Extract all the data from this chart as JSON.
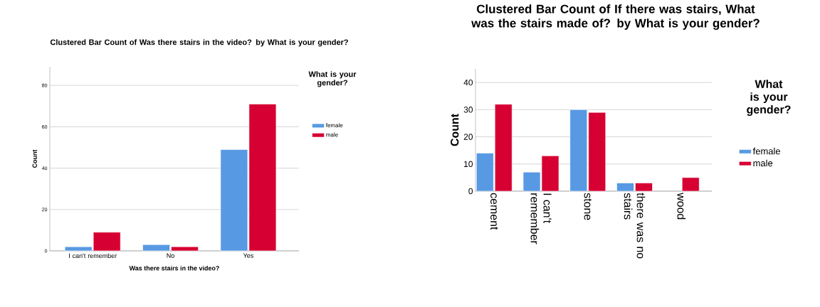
{
  "chart_data": [
    {
      "type": "bar",
      "title": "Clustered Bar Count of Was there stairs in the video? by What is your gender?",
      "xlabel": "Was there stairs in the video?",
      "ylabel": "Count",
      "legend_title": "What is your gender?",
      "categories": [
        "I can't remember",
        "No",
        "Yes"
      ],
      "series": [
        {
          "name": "female",
          "color": "#5799e3",
          "values": [
            2,
            3,
            49
          ]
        },
        {
          "name": "male",
          "color": "#d60032",
          "values": [
            9,
            2,
            71
          ]
        }
      ],
      "ylim": [
        0,
        89
      ],
      "yticks": [
        0,
        20,
        40,
        60,
        80
      ],
      "grid": "y",
      "legend": "right"
    },
    {
      "type": "bar",
      "title": "Clustered Bar Count of If there was stairs, What was the stairs made of? by What is your gender?",
      "ylabel": "Count",
      "legend_title": "What is your gender?",
      "categories": [
        "cement",
        "I can't remember",
        "stone",
        "there was no stairs",
        "wood"
      ],
      "series": [
        {
          "name": "female",
          "color": "#5799e3",
          "values": [
            14,
            7,
            30,
            3,
            null
          ]
        },
        {
          "name": "male",
          "color": "#d60032",
          "values": [
            32,
            13,
            29,
            3,
            5
          ]
        }
      ],
      "ylim": [
        0,
        45
      ],
      "yticks": [
        0,
        10,
        20,
        30,
        40
      ],
      "grid": "y",
      "legend": "right"
    }
  ]
}
